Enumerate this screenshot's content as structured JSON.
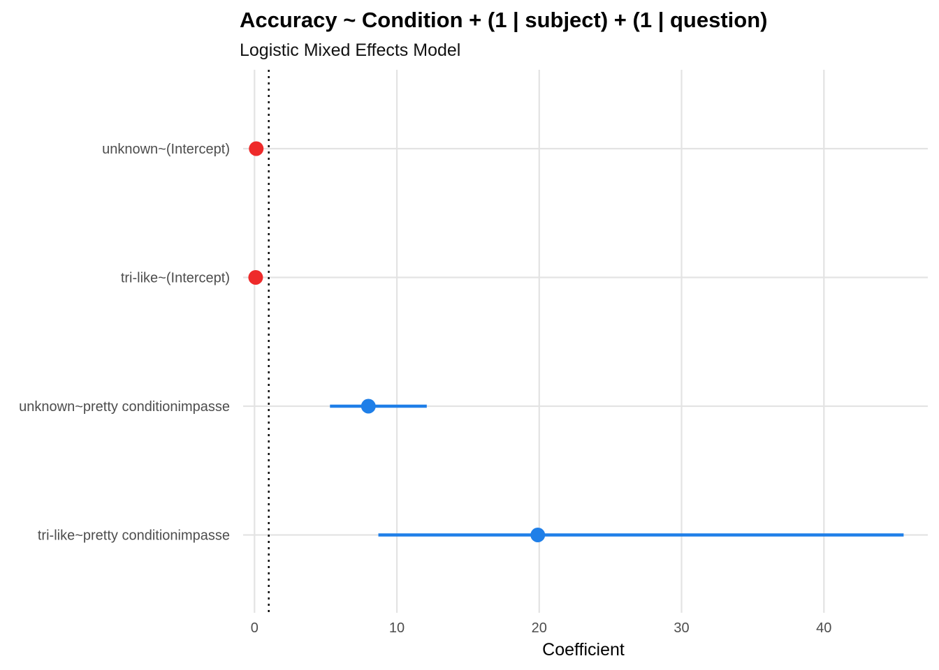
{
  "chart_data": {
    "type": "scatter",
    "title": "Accuracy ~ Condition + (1 | subject) + (1 | question)",
    "subtitle": "Logistic Mixed Effects Model",
    "xlabel": "Coefficient",
    "ylabel": "",
    "xlim": [
      -0.8,
      47.3
    ],
    "x_ticks": [
      0,
      10,
      20,
      30,
      40
    ],
    "reference_line": 1,
    "grid": true,
    "categories": [
      "unknown~(Intercept)",
      "tri-like~(Intercept)",
      "unknown~pretty conditionimpasse",
      "tri-like~pretty conditionimpasse"
    ],
    "points": [
      {
        "term": "unknown~(Intercept)",
        "estimate": 0.12,
        "conf_low": 0.05,
        "conf_high": 0.25,
        "color": "#ee2a2a"
      },
      {
        "term": "tri-like~(Intercept)",
        "estimate": 0.08,
        "conf_low": 0.03,
        "conf_high": 0.18,
        "color": "#ee2a2a"
      },
      {
        "term": "unknown~pretty conditionimpasse",
        "estimate": 8.0,
        "conf_low": 5.3,
        "conf_high": 12.1,
        "color": "#1f7fe8"
      },
      {
        "term": "tri-like~pretty conditionimpasse",
        "estimate": 19.9,
        "conf_low": 8.7,
        "conf_high": 45.6,
        "color": "#1f7fe8"
      }
    ]
  }
}
